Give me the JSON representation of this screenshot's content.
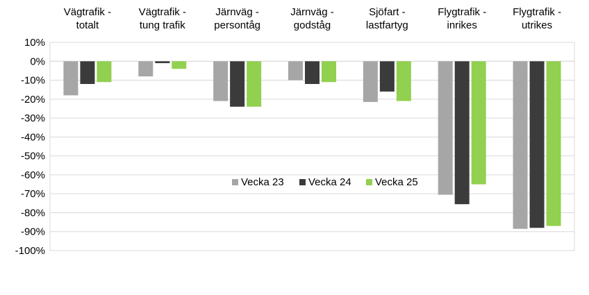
{
  "chart_data": {
    "type": "bar",
    "categories": [
      [
        "Vägtrafik -",
        "totalt"
      ],
      [
        "Vägtrafik -",
        "tung trafik"
      ],
      [
        "Järnväg -",
        "persontåg"
      ],
      [
        "Järnväg -",
        "godståg"
      ],
      [
        "Sjöfart -",
        "lastfartyg"
      ],
      [
        "Flygtrafik -",
        "inrikes"
      ],
      [
        "Flygtrafik -",
        "utrikes"
      ]
    ],
    "series": [
      {
        "name": "Vecka 23",
        "color": "#a6a6a6",
        "values": [
          -18,
          -8,
          -21,
          -10,
          -21.5,
          -70.5,
          -88.5
        ]
      },
      {
        "name": "Vecka 24",
        "color": "#3b3b3b",
        "values": [
          -12,
          -1,
          -24,
          -12,
          -16,
          -75.5,
          -88
        ]
      },
      {
        "name": "Vecka 25",
        "color": "#92d050",
        "values": [
          -11,
          -4,
          -24,
          -11,
          -21,
          -65,
          -87
        ]
      }
    ],
    "ylim": [
      -100,
      10
    ],
    "yticks": [
      10,
      0,
      -10,
      -20,
      -30,
      -40,
      -50,
      -60,
      -70,
      -80,
      -90,
      -100
    ],
    "ytick_labels": [
      "10%",
      "0%",
      "-10%",
      "-20%",
      "-30%",
      "-40%",
      "-50%",
      "-60%",
      "-70%",
      "-80%",
      "-90%",
      "-100%"
    ],
    "grid": true,
    "legend": "center",
    "title": "",
    "xlabel": "",
    "ylabel": ""
  }
}
